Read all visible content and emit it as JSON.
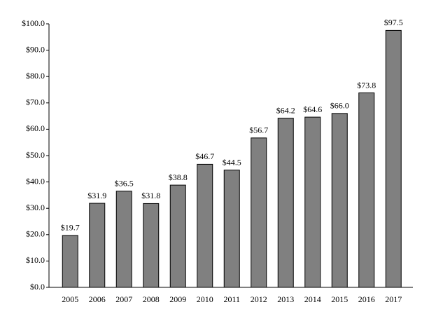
{
  "chart_data": {
    "type": "bar",
    "categories": [
      "2005",
      "2006",
      "2007",
      "2008",
      "2009",
      "2010",
      "2011",
      "2012",
      "2013",
      "2014",
      "2015",
      "2016",
      "2017"
    ],
    "values": [
      19.7,
      31.9,
      36.5,
      31.8,
      38.8,
      46.7,
      44.5,
      56.7,
      64.2,
      64.6,
      66.0,
      73.8,
      97.5
    ],
    "value_labels": [
      "$19.7",
      "$31.9",
      "$36.5",
      "$31.8",
      "$38.8",
      "$46.7",
      "$44.5",
      "$56.7",
      "$64.2",
      "$64.6",
      "$66.0",
      "$73.8",
      "$97.5"
    ],
    "color": "#808080",
    "ylim": [
      0,
      100
    ],
    "yticks": [
      {
        "value": 0,
        "label": "$0.0"
      },
      {
        "value": 10,
        "label": "$10.0"
      },
      {
        "value": 20,
        "label": "$20.0"
      },
      {
        "value": 30,
        "label": "$30.0"
      },
      {
        "value": 40,
        "label": "$40.0"
      },
      {
        "value": 50,
        "label": "$50.0"
      },
      {
        "value": 60,
        "label": "$60.0"
      },
      {
        "value": 70,
        "label": "$70.0"
      },
      {
        "value": 80,
        "label": "$80.0"
      },
      {
        "value": 90,
        "label": "$90.0"
      },
      {
        "value": 100,
        "label": "$100.0"
      }
    ],
    "grid": false
  }
}
